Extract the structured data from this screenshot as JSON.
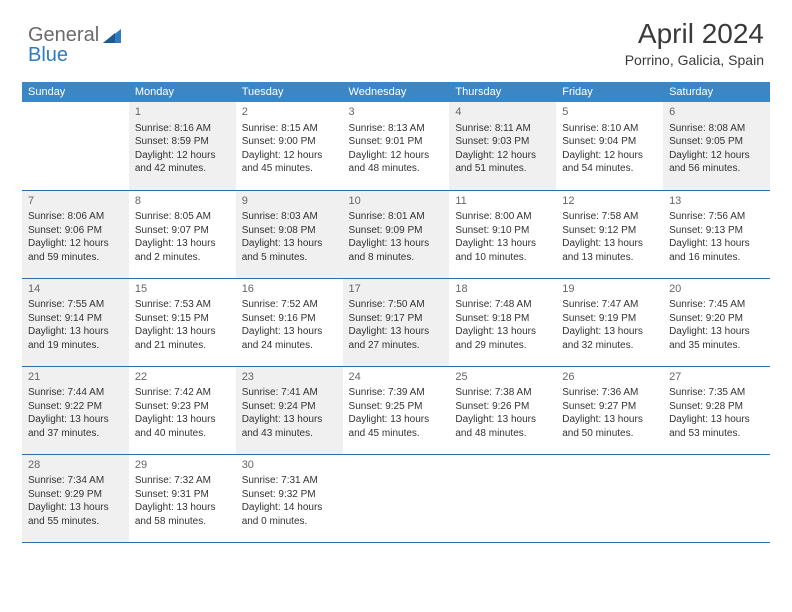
{
  "logo": {
    "text1": "General",
    "text2": "Blue"
  },
  "title": "April 2024",
  "location": "Porrino, Galicia, Spain",
  "day_headers": [
    "Sunday",
    "Monday",
    "Tuesday",
    "Wednesday",
    "Thursday",
    "Friday",
    "Saturday"
  ],
  "colors": {
    "header_bg": "#3b86c5",
    "header_text": "#ffffff",
    "row_border": "#2f6ea8",
    "shaded_bg": "#f0f0f0",
    "body_text": "#333333",
    "daynum_text": "#666666",
    "logo_gray": "#6b6b6b",
    "logo_blue": "#2f7ac0"
  },
  "weeks": [
    [
      {
        "day": "",
        "shaded": false
      },
      {
        "day": "1",
        "shaded": true,
        "sunrise": "Sunrise: 8:16 AM",
        "sunset": "Sunset: 8:59 PM",
        "daylight1": "Daylight: 12 hours",
        "daylight2": "and 42 minutes."
      },
      {
        "day": "2",
        "shaded": false,
        "sunrise": "Sunrise: 8:15 AM",
        "sunset": "Sunset: 9:00 PM",
        "daylight1": "Daylight: 12 hours",
        "daylight2": "and 45 minutes."
      },
      {
        "day": "3",
        "shaded": false,
        "sunrise": "Sunrise: 8:13 AM",
        "sunset": "Sunset: 9:01 PM",
        "daylight1": "Daylight: 12 hours",
        "daylight2": "and 48 minutes."
      },
      {
        "day": "4",
        "shaded": true,
        "sunrise": "Sunrise: 8:11 AM",
        "sunset": "Sunset: 9:03 PM",
        "daylight1": "Daylight: 12 hours",
        "daylight2": "and 51 minutes."
      },
      {
        "day": "5",
        "shaded": false,
        "sunrise": "Sunrise: 8:10 AM",
        "sunset": "Sunset: 9:04 PM",
        "daylight1": "Daylight: 12 hours",
        "daylight2": "and 54 minutes."
      },
      {
        "day": "6",
        "shaded": true,
        "sunrise": "Sunrise: 8:08 AM",
        "sunset": "Sunset: 9:05 PM",
        "daylight1": "Daylight: 12 hours",
        "daylight2": "and 56 minutes."
      }
    ],
    [
      {
        "day": "7",
        "shaded": true,
        "sunrise": "Sunrise: 8:06 AM",
        "sunset": "Sunset: 9:06 PM",
        "daylight1": "Daylight: 12 hours",
        "daylight2": "and 59 minutes."
      },
      {
        "day": "8",
        "shaded": false,
        "sunrise": "Sunrise: 8:05 AM",
        "sunset": "Sunset: 9:07 PM",
        "daylight1": "Daylight: 13 hours",
        "daylight2": "and 2 minutes."
      },
      {
        "day": "9",
        "shaded": true,
        "sunrise": "Sunrise: 8:03 AM",
        "sunset": "Sunset: 9:08 PM",
        "daylight1": "Daylight: 13 hours",
        "daylight2": "and 5 minutes."
      },
      {
        "day": "10",
        "shaded": true,
        "sunrise": "Sunrise: 8:01 AM",
        "sunset": "Sunset: 9:09 PM",
        "daylight1": "Daylight: 13 hours",
        "daylight2": "and 8 minutes."
      },
      {
        "day": "11",
        "shaded": false,
        "sunrise": "Sunrise: 8:00 AM",
        "sunset": "Sunset: 9:10 PM",
        "daylight1": "Daylight: 13 hours",
        "daylight2": "and 10 minutes."
      },
      {
        "day": "12",
        "shaded": false,
        "sunrise": "Sunrise: 7:58 AM",
        "sunset": "Sunset: 9:12 PM",
        "daylight1": "Daylight: 13 hours",
        "daylight2": "and 13 minutes."
      },
      {
        "day": "13",
        "shaded": false,
        "sunrise": "Sunrise: 7:56 AM",
        "sunset": "Sunset: 9:13 PM",
        "daylight1": "Daylight: 13 hours",
        "daylight2": "and 16 minutes."
      }
    ],
    [
      {
        "day": "14",
        "shaded": true,
        "sunrise": "Sunrise: 7:55 AM",
        "sunset": "Sunset: 9:14 PM",
        "daylight1": "Daylight: 13 hours",
        "daylight2": "and 19 minutes."
      },
      {
        "day": "15",
        "shaded": false,
        "sunrise": "Sunrise: 7:53 AM",
        "sunset": "Sunset: 9:15 PM",
        "daylight1": "Daylight: 13 hours",
        "daylight2": "and 21 minutes."
      },
      {
        "day": "16",
        "shaded": false,
        "sunrise": "Sunrise: 7:52 AM",
        "sunset": "Sunset: 9:16 PM",
        "daylight1": "Daylight: 13 hours",
        "daylight2": "and 24 minutes."
      },
      {
        "day": "17",
        "shaded": true,
        "sunrise": "Sunrise: 7:50 AM",
        "sunset": "Sunset: 9:17 PM",
        "daylight1": "Daylight: 13 hours",
        "daylight2": "and 27 minutes."
      },
      {
        "day": "18",
        "shaded": false,
        "sunrise": "Sunrise: 7:48 AM",
        "sunset": "Sunset: 9:18 PM",
        "daylight1": "Daylight: 13 hours",
        "daylight2": "and 29 minutes."
      },
      {
        "day": "19",
        "shaded": false,
        "sunrise": "Sunrise: 7:47 AM",
        "sunset": "Sunset: 9:19 PM",
        "daylight1": "Daylight: 13 hours",
        "daylight2": "and 32 minutes."
      },
      {
        "day": "20",
        "shaded": false,
        "sunrise": "Sunrise: 7:45 AM",
        "sunset": "Sunset: 9:20 PM",
        "daylight1": "Daylight: 13 hours",
        "daylight2": "and 35 minutes."
      }
    ],
    [
      {
        "day": "21",
        "shaded": true,
        "sunrise": "Sunrise: 7:44 AM",
        "sunset": "Sunset: 9:22 PM",
        "daylight1": "Daylight: 13 hours",
        "daylight2": "and 37 minutes."
      },
      {
        "day": "22",
        "shaded": false,
        "sunrise": "Sunrise: 7:42 AM",
        "sunset": "Sunset: 9:23 PM",
        "daylight1": "Daylight: 13 hours",
        "daylight2": "and 40 minutes."
      },
      {
        "day": "23",
        "shaded": true,
        "sunrise": "Sunrise: 7:41 AM",
        "sunset": "Sunset: 9:24 PM",
        "daylight1": "Daylight: 13 hours",
        "daylight2": "and 43 minutes."
      },
      {
        "day": "24",
        "shaded": false,
        "sunrise": "Sunrise: 7:39 AM",
        "sunset": "Sunset: 9:25 PM",
        "daylight1": "Daylight: 13 hours",
        "daylight2": "and 45 minutes."
      },
      {
        "day": "25",
        "shaded": false,
        "sunrise": "Sunrise: 7:38 AM",
        "sunset": "Sunset: 9:26 PM",
        "daylight1": "Daylight: 13 hours",
        "daylight2": "and 48 minutes."
      },
      {
        "day": "26",
        "shaded": false,
        "sunrise": "Sunrise: 7:36 AM",
        "sunset": "Sunset: 9:27 PM",
        "daylight1": "Daylight: 13 hours",
        "daylight2": "and 50 minutes."
      },
      {
        "day": "27",
        "shaded": false,
        "sunrise": "Sunrise: 7:35 AM",
        "sunset": "Sunset: 9:28 PM",
        "daylight1": "Daylight: 13 hours",
        "daylight2": "and 53 minutes."
      }
    ],
    [
      {
        "day": "28",
        "shaded": true,
        "sunrise": "Sunrise: 7:34 AM",
        "sunset": "Sunset: 9:29 PM",
        "daylight1": "Daylight: 13 hours",
        "daylight2": "and 55 minutes."
      },
      {
        "day": "29",
        "shaded": false,
        "sunrise": "Sunrise: 7:32 AM",
        "sunset": "Sunset: 9:31 PM",
        "daylight1": "Daylight: 13 hours",
        "daylight2": "and 58 minutes."
      },
      {
        "day": "30",
        "shaded": false,
        "sunrise": "Sunrise: 7:31 AM",
        "sunset": "Sunset: 9:32 PM",
        "daylight1": "Daylight: 14 hours",
        "daylight2": "and 0 minutes."
      },
      {
        "day": "",
        "shaded": false
      },
      {
        "day": "",
        "shaded": false
      },
      {
        "day": "",
        "shaded": false
      },
      {
        "day": "",
        "shaded": false
      }
    ]
  ]
}
